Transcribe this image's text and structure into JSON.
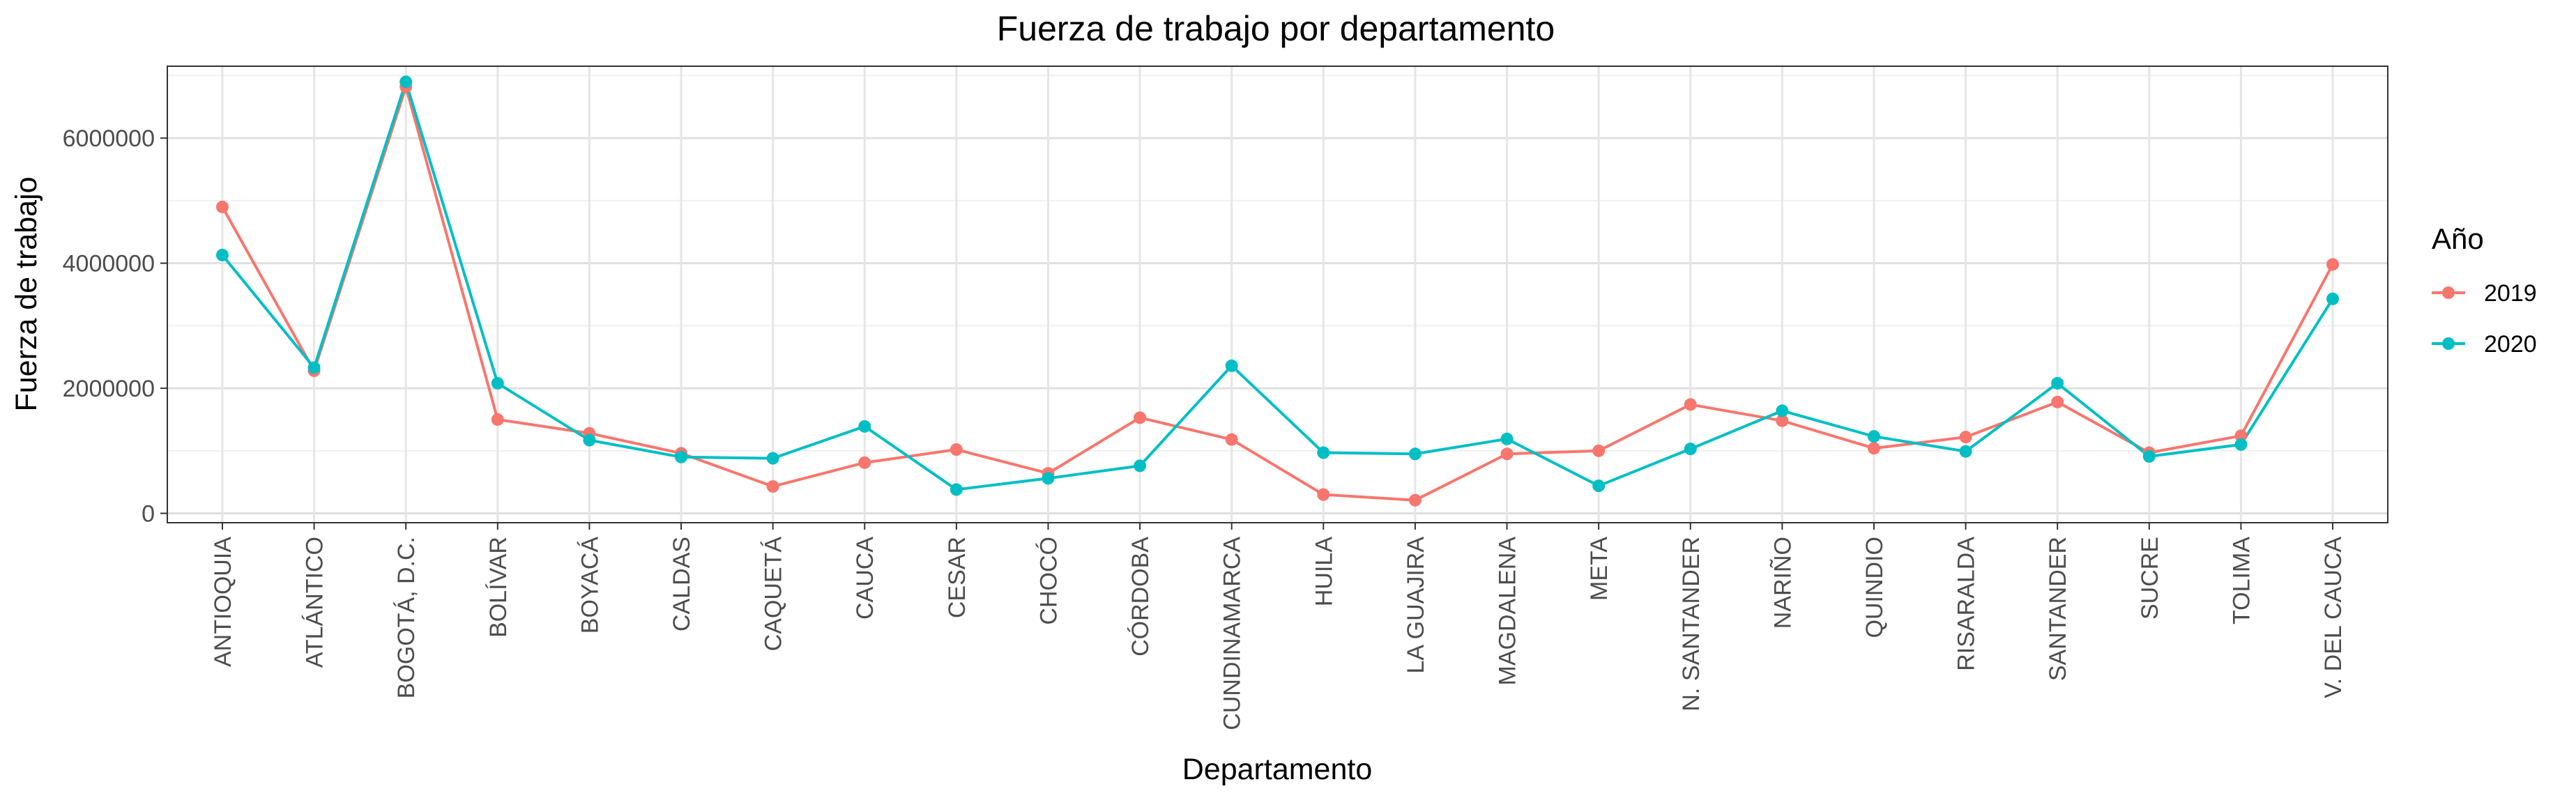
{
  "chart_data": {
    "type": "line",
    "title": "Fuerza de trabajo por departamento",
    "xlabel": "Departamento",
    "ylabel": "Fuerza de trabajo",
    "categories": [
      "ANTIOQUIA",
      "ATLÁNTICO",
      "BOGOTÁ, D.C.",
      "BOLÍVAR",
      "BOYACÁ",
      "CALDAS",
      "CAQUETÁ",
      "CAUCA",
      "CESAR",
      "CHOCÓ",
      "CÓRDOBA",
      "CUNDINAMARCA",
      "HUILA",
      "LA GUAJIRA",
      "MAGDALENA",
      "META",
      "N. SANTANDER",
      "NARIÑO",
      "QUINDIO",
      "RISARALDA",
      "SANTANDER",
      "SUCRE",
      "TOLIMA",
      "V. DEL CAUCA"
    ],
    "y_ticks": [
      0,
      2000000,
      4000000,
      6000000
    ],
    "y_tick_labels": [
      "0",
      "2000000",
      "4000000",
      "6000000"
    ],
    "ylim": [
      -150000,
      7150000
    ],
    "grid": true,
    "legend": {
      "title": "Año",
      "position": "right"
    },
    "series": [
      {
        "name": "2019",
        "color": "#F8766D",
        "values": [
          4900000,
          2280000,
          6820000,
          1500000,
          1280000,
          960000,
          430000,
          810000,
          1020000,
          640000,
          1530000,
          1180000,
          300000,
          210000,
          950000,
          1000000,
          1740000,
          1480000,
          1040000,
          1220000,
          1780000,
          970000,
          1240000,
          3980000
        ]
      },
      {
        "name": "2020",
        "color": "#00BFC4",
        "values": [
          4130000,
          2330000,
          6900000,
          2080000,
          1170000,
          900000,
          880000,
          1390000,
          380000,
          560000,
          760000,
          2360000,
          970000,
          950000,
          1190000,
          440000,
          1030000,
          1640000,
          1230000,
          990000,
          2080000,
          910000,
          1100000,
          3430000
        ]
      }
    ]
  }
}
